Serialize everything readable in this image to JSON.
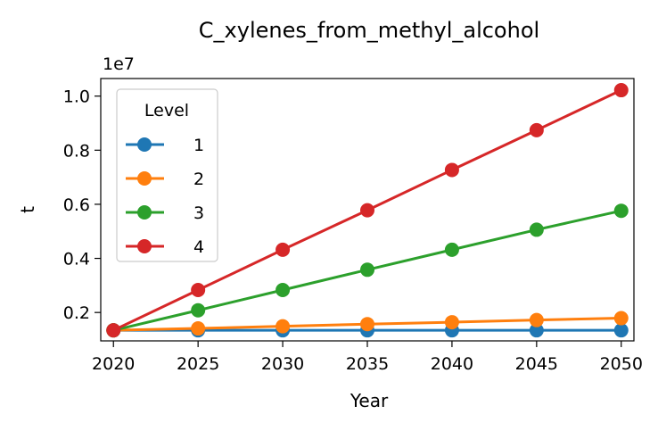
{
  "chart_data": {
    "type": "line",
    "title": "C_xylenes_from_methyl_alcohol",
    "xlabel": "Year",
    "ylabel": "t",
    "y_offset_label": "1e7",
    "y_scale": 10000000,
    "x": [
      2020,
      2025,
      2030,
      2035,
      2040,
      2045,
      2050
    ],
    "xlim": [
      2019.25,
      2050.75
    ],
    "ylim": [
      0.095,
      1.065
    ],
    "x_ticks": [
      "2020",
      "2025",
      "2030",
      "2035",
      "2040",
      "2045",
      "2050"
    ],
    "y_ticks": [
      "0.2",
      "0.4",
      "0.6",
      "0.8",
      "1.0"
    ],
    "y_tick_values": [
      0.2,
      0.4,
      0.6,
      0.8,
      1.0
    ],
    "grid": false,
    "legend": {
      "title": "Level",
      "placement": "top-left"
    },
    "series": [
      {
        "name": "1",
        "color": "#1f77b4",
        "values": [
          0.134,
          0.134,
          0.134,
          0.134,
          0.134,
          0.134,
          0.134
        ]
      },
      {
        "name": "2",
        "color": "#ff7f0e",
        "values": [
          0.134,
          0.141,
          0.149,
          0.157,
          0.164,
          0.172,
          0.179
        ]
      },
      {
        "name": "3",
        "color": "#2ca02c",
        "values": [
          0.134,
          0.208,
          0.283,
          0.358,
          0.432,
          0.506,
          0.576
        ]
      },
      {
        "name": "4",
        "color": "#d62728",
        "values": [
          0.134,
          0.283,
          0.432,
          0.578,
          0.727,
          0.874,
          1.022
        ]
      }
    ]
  }
}
